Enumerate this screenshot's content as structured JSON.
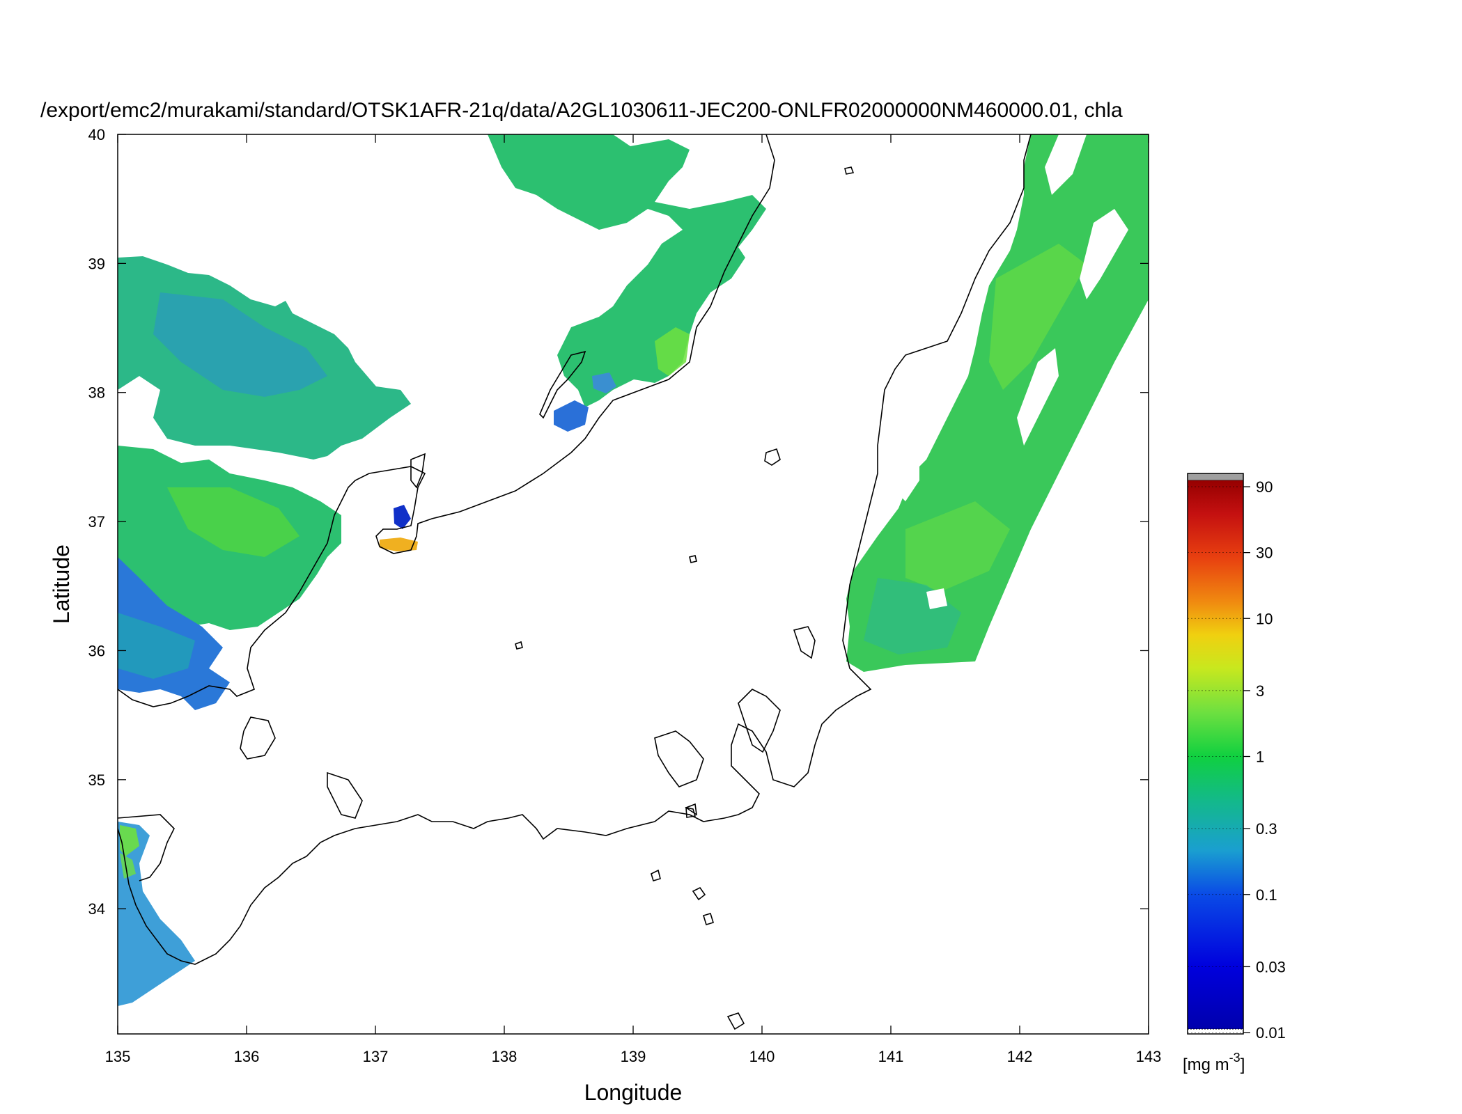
{
  "title": "/export/emc2/murakami/standard/OTSK1AFR-21q/data/A2GL1030611-JEC200-ONLFR02000000NM460000.01, chla",
  "x_axis": {
    "label": "Longitude",
    "ticks": [
      "135",
      "136",
      "137",
      "138",
      "139",
      "140",
      "141",
      "142",
      "143"
    ]
  },
  "y_axis": {
    "label": "Latitude",
    "ticks": [
      "34",
      "35",
      "36",
      "37",
      "38",
      "39",
      "40"
    ]
  },
  "colorbar": {
    "unit_base": "[mg m",
    "unit_exp": "-3",
    "unit_close": "]",
    "ticks": [
      "0.01",
      "0.03",
      "0.1",
      "0.3",
      "1",
      "3",
      "10",
      "30",
      "90"
    ],
    "scale": "log",
    "range": [
      0.01,
      100
    ],
    "stops": [
      "#0000aa",
      "#0000dd",
      "#0a4be6",
      "#1a9fd0",
      "#13b98a",
      "#10d040",
      "#6ee040",
      "#c8e81e",
      "#f0d010",
      "#f08a10",
      "#e84010",
      "#c41010",
      "#960000"
    ],
    "overflow_color": "#a0a0a0"
  },
  "legend_colors": {
    "ocean_mid": "#2cc070",
    "ocean_high": "#5edc30",
    "ocean_low": "#2a8fd0",
    "bloom": "#f0b020",
    "coast": "#000000"
  }
}
